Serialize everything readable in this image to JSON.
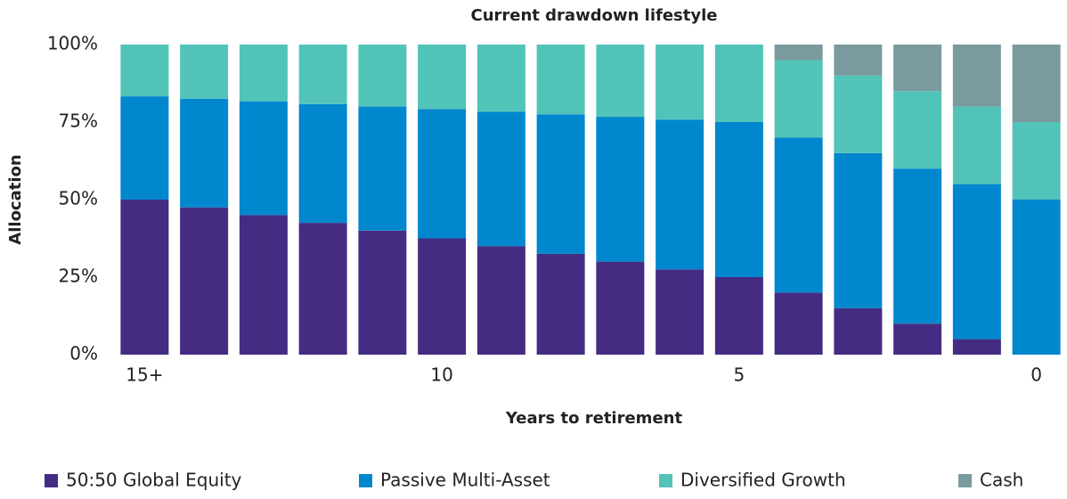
{
  "chart_data": {
    "type": "stacked_bar",
    "title": "Current drawdown lifestyle",
    "x_label": "Years to retirement",
    "y_label": "Allocation",
    "categories": [
      "15+",
      null,
      null,
      null,
      null,
      "10",
      null,
      null,
      null,
      null,
      "5",
      null,
      null,
      null,
      null,
      "0"
    ],
    "series": [
      {
        "name": "50:50 Global Equity",
        "color": "#452c83",
        "values": [
          50,
          47.5,
          45,
          42.5,
          40,
          37.5,
          35,
          32.5,
          30,
          27.5,
          25,
          20,
          15,
          10,
          5,
          0
        ]
      },
      {
        "name": "Passive Multi-Asset",
        "color": "#0087cd",
        "values": [
          33.3,
          35,
          36.7,
          38.3,
          40,
          41.7,
          43.3,
          45,
          46.7,
          48.3,
          50,
          50,
          50,
          50,
          50,
          50
        ]
      },
      {
        "name": "Diversified Growth",
        "color": "#52c3b8",
        "values": [
          16.7,
          17.5,
          18.3,
          19.2,
          20,
          20.8,
          21.7,
          22.5,
          23.3,
          24.2,
          25,
          25,
          25,
          25,
          25,
          25
        ]
      },
      {
        "name": "Cash",
        "color": "#7a9a9e",
        "values": [
          0,
          0,
          0,
          0,
          0,
          0,
          0,
          0,
          0,
          0,
          0,
          5,
          10,
          15,
          20,
          25
        ]
      }
    ],
    "ylim": [
      0,
      100
    ],
    "yticks": [
      {
        "value": 0,
        "label": "0%"
      },
      {
        "value": 25,
        "label": "25%"
      },
      {
        "value": 50,
        "label": "50%"
      },
      {
        "value": 75,
        "label": "75%"
      },
      {
        "value": 100,
        "label": "100%"
      }
    ],
    "legend": "bottom"
  }
}
